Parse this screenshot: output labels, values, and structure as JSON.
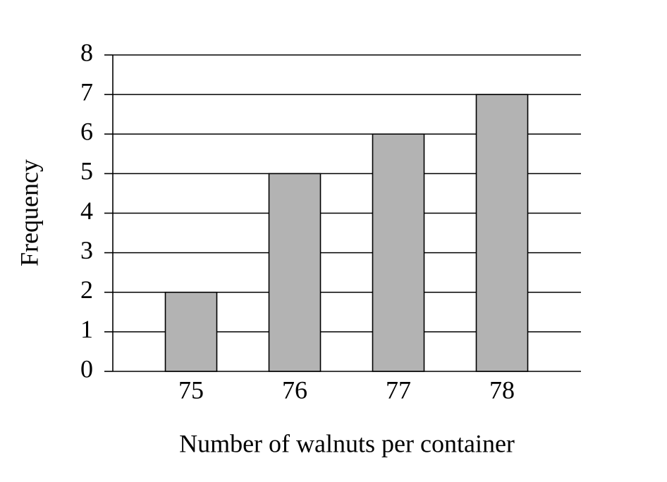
{
  "chart_data": {
    "type": "bar",
    "x_label": "Number of walnuts per container",
    "y_label": "Frequency",
    "categories": [
      "75",
      "76",
      "77",
      "78"
    ],
    "values": [
      2,
      5,
      6,
      7
    ],
    "color": "#b3b3b3",
    "ylim": [
      0,
      8
    ],
    "yticks": [
      0,
      1,
      2,
      3,
      4,
      5,
      6,
      7,
      8
    ],
    "grid": true
  }
}
